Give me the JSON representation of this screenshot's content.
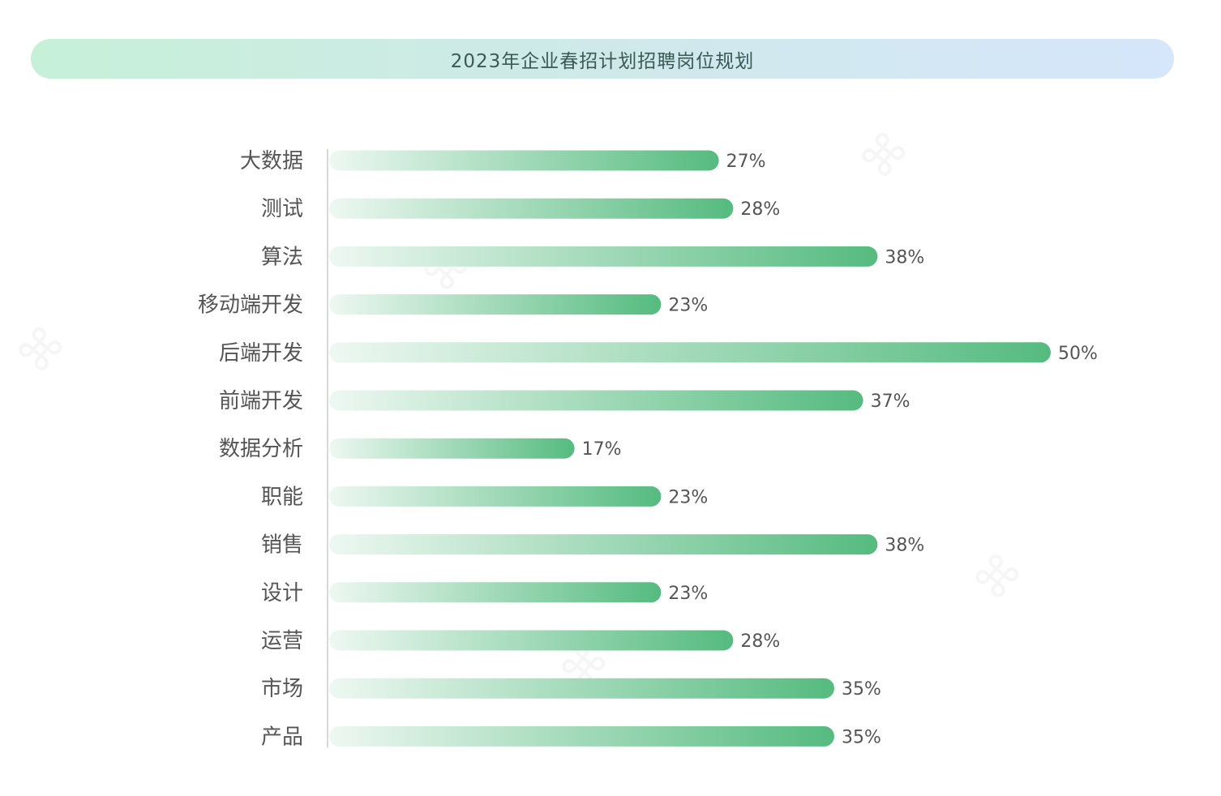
{
  "title": "2023年企业春招计划招聘岗位规划",
  "colors": {
    "bar_start": "#eef8f2",
    "bar_end": "#55bb7f",
    "axis": "#d8d8d8",
    "text": "#555555"
  },
  "chart_data": {
    "type": "bar",
    "orientation": "horizontal",
    "title": "2023年企业春招计划招聘岗位规划",
    "categories": [
      "大数据",
      "测试",
      "算法",
      "移动端开发",
      "后端开发",
      "前端开发",
      "数据分析",
      "职能",
      "销售",
      "设计",
      "运营",
      "市场",
      "产品"
    ],
    "values": [
      27,
      28,
      38,
      23,
      50,
      37,
      17,
      23,
      38,
      23,
      28,
      35,
      35
    ],
    "value_labels": [
      "27%",
      "28%",
      "38%",
      "23%",
      "50%",
      "37%",
      "17%",
      "23%",
      "38%",
      "23%",
      "28%",
      "35%",
      "35%"
    ],
    "unit": "%",
    "xlim": [
      0,
      50
    ],
    "grid": false,
    "legend": "none"
  }
}
